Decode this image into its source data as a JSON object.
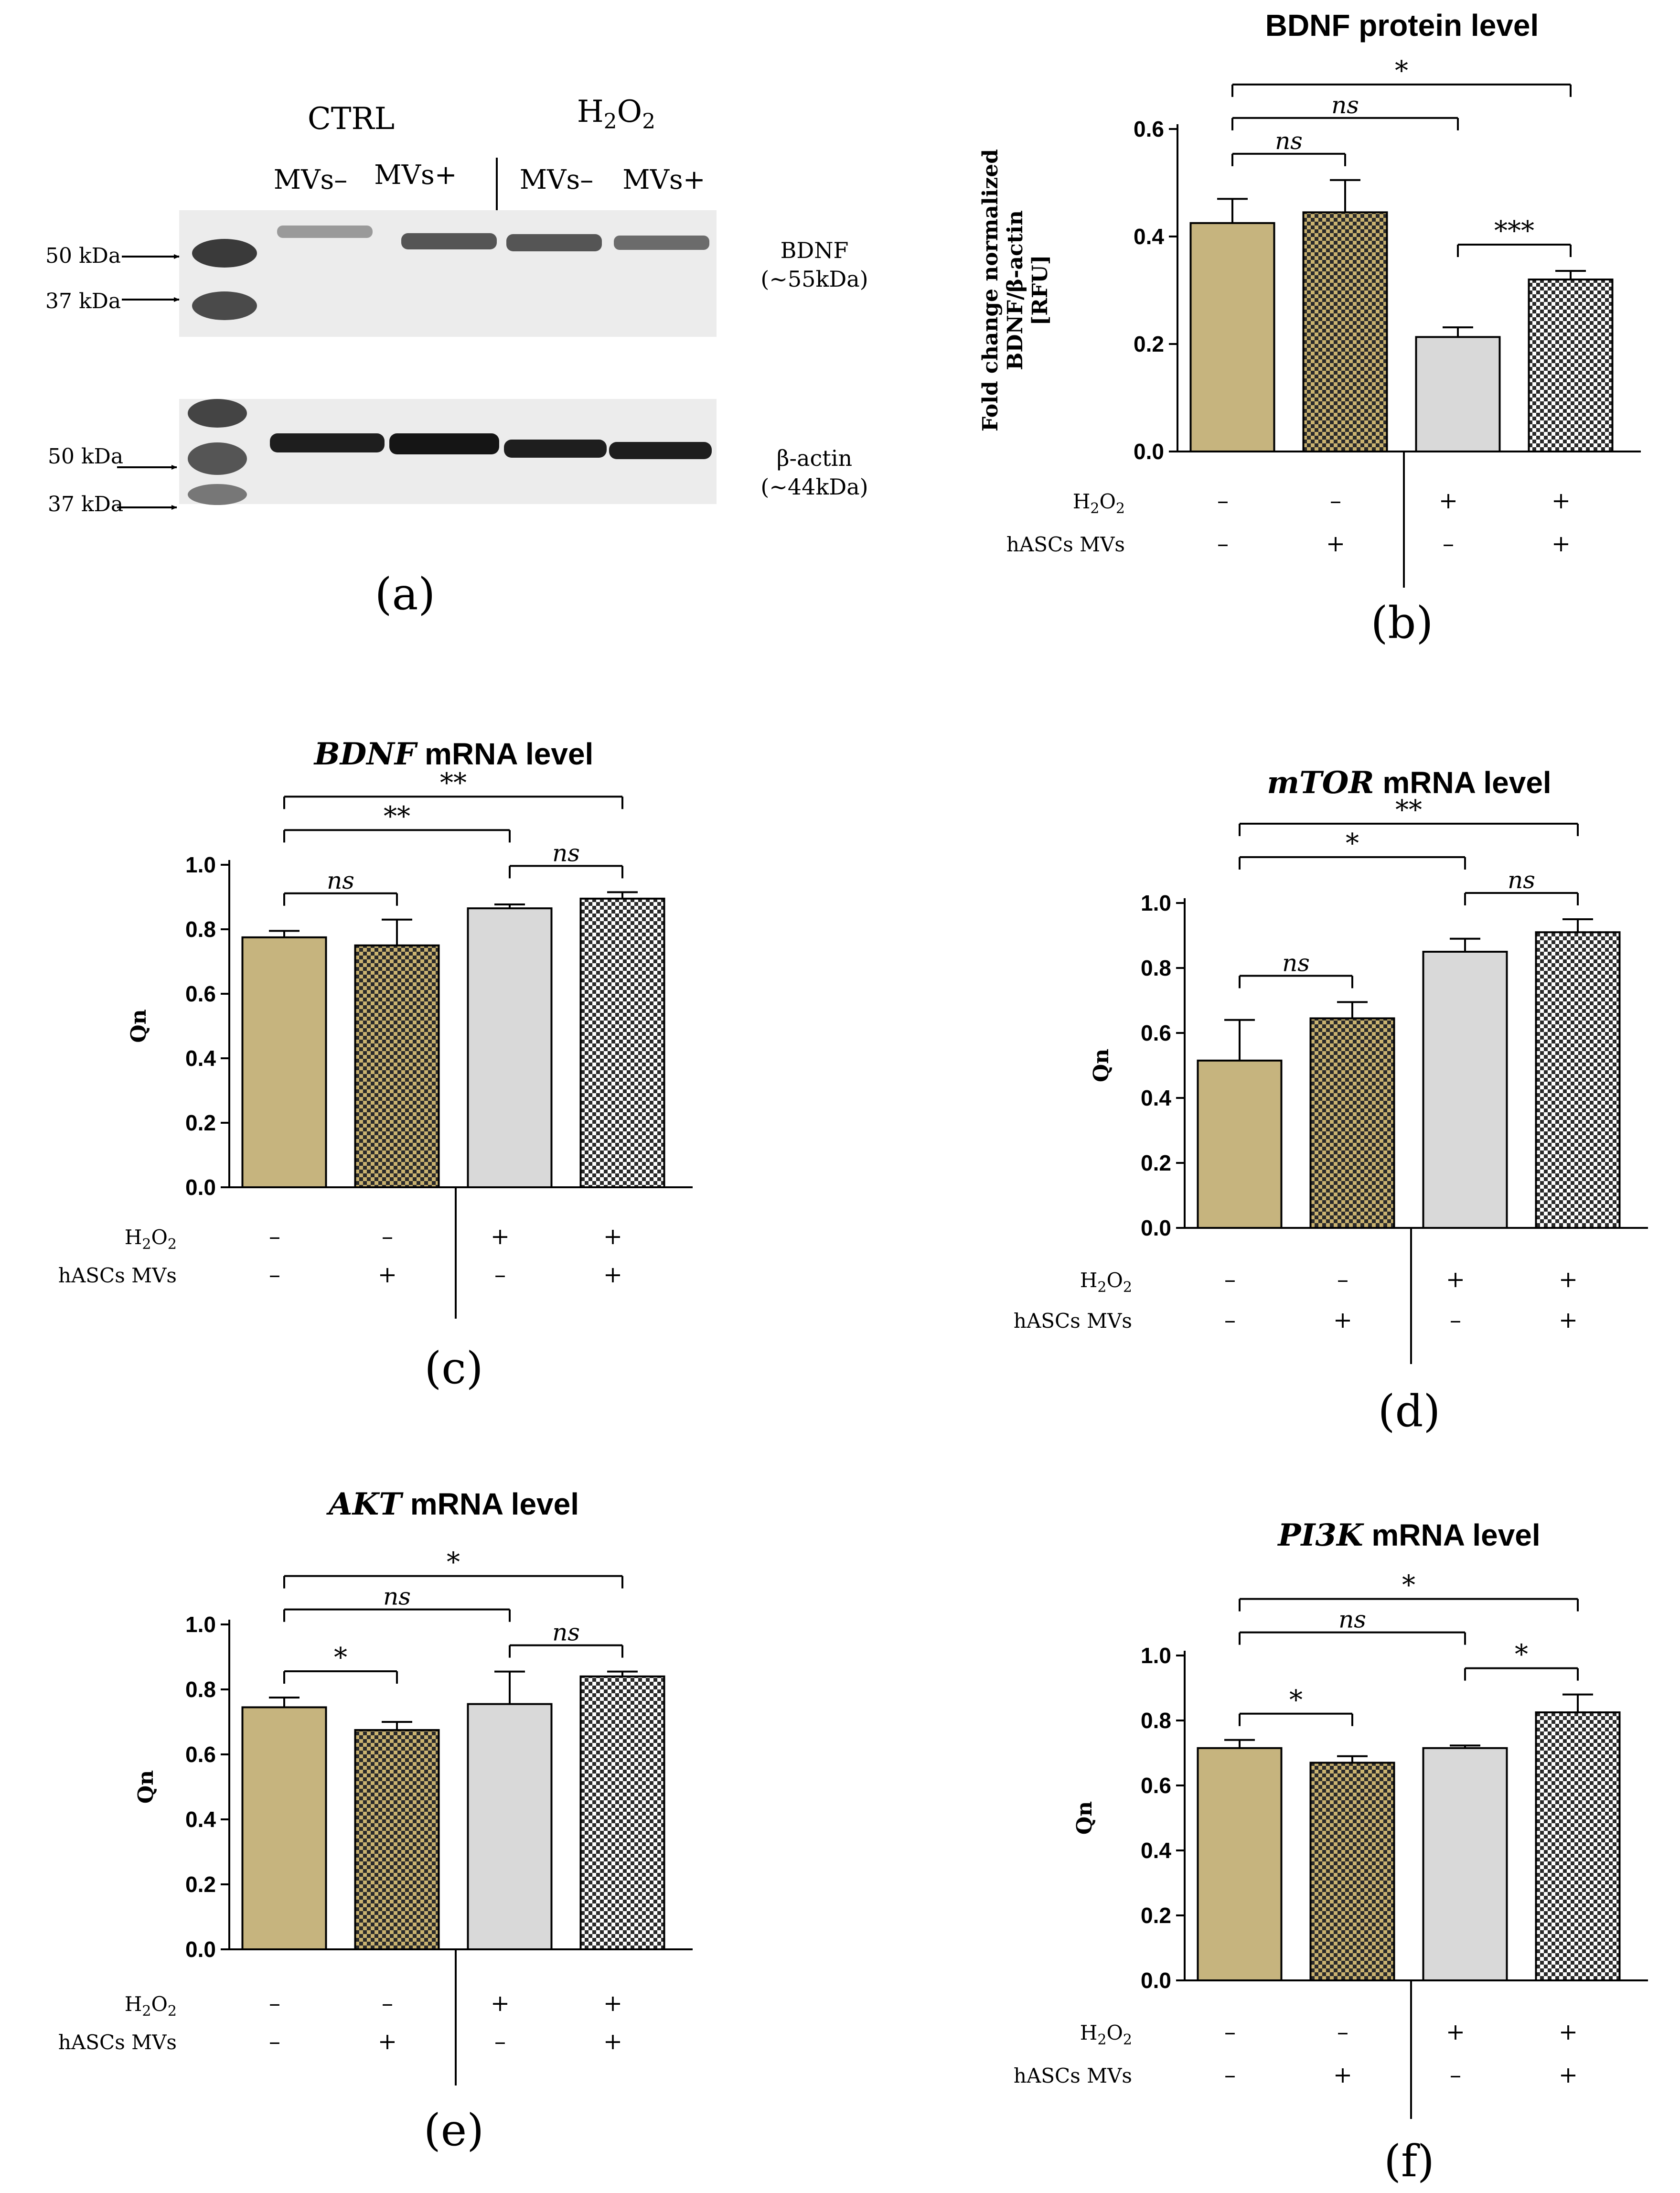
{
  "colors": {
    "ctrl_fill": "#c6b47e",
    "ctrl_mvs_fill": "#c9b270",
    "h2o2_fill": "#d9d9d9",
    "h2o2_mvs_fill": "#ffffff",
    "checker_dark": "#2a2a2a",
    "ink": "#000000",
    "blot_bg": "#ebebeb",
    "band": "#1e1e1e"
  },
  "blot": {
    "panel_label": "(a)",
    "group_ctrl": "CTRL",
    "group_h2o2": "H2O2",
    "lanes": [
      "MVs–",
      "MVs+",
      "MVs–",
      "MVs+"
    ],
    "bdnf_markers": [
      "50 kDa",
      "37 kDa"
    ],
    "actin_markers": [
      "50 kDa",
      "37 kDa"
    ],
    "bdnf_label": "BDNF",
    "bdnf_size": "(~55kDa)",
    "actin_label": "β-actin",
    "actin_size": "(~44kDa)"
  },
  "condition_labels": {
    "h2o2": "H2O2",
    "mvs": "hASCs MVs",
    "h2o2_signs": [
      "–",
      "–",
      "+",
      "+"
    ],
    "mvs_signs": [
      "–",
      "+",
      "–",
      "+"
    ]
  },
  "chart_data": [
    {
      "id": "b",
      "type": "bar",
      "panel_label": "(b)",
      "title": "BDNF protein level",
      "title_italic": "",
      "ylabel_lines": [
        "Fold change normalized",
        "BDNF/β-actin",
        "[RFU]"
      ],
      "ylim": [
        0,
        0.6
      ],
      "yticks": [
        0.0,
        0.2,
        0.4,
        0.6
      ],
      "tick_labels": [
        "0.0",
        "0.2",
        "0.4",
        "0.6"
      ],
      "categories": [
        "CTRL MVs–",
        "CTRL MVs+",
        "H2O2 MVs–",
        "H2O2 MVs+"
      ],
      "values": [
        0.425,
        0.445,
        0.213,
        0.32
      ],
      "errors": [
        0.045,
        0.06,
        0.018,
        0.016
      ],
      "significance": [
        {
          "from": 0,
          "to": 3,
          "label": "*"
        },
        {
          "from": 0,
          "to": 2,
          "label": "ns"
        },
        {
          "from": 0,
          "to": 1,
          "label": "ns"
        },
        {
          "from": 2,
          "to": 3,
          "label": "***"
        }
      ]
    },
    {
      "id": "c",
      "type": "bar",
      "panel_label": "(c)",
      "title": " mRNA level",
      "title_italic": "BDNF",
      "ylabel_lines": [
        "Qn"
      ],
      "ylim": [
        0,
        1.0
      ],
      "yticks": [
        0.0,
        0.2,
        0.4,
        0.6,
        0.8,
        1.0
      ],
      "tick_labels": [
        "0.0",
        "0.2",
        "0.4",
        "0.6",
        "0.8",
        "1.0"
      ],
      "categories": [
        "CTRL MVs–",
        "CTRL MVs+",
        "H2O2 MVs–",
        "H2O2 MVs+"
      ],
      "values": [
        0.775,
        0.75,
        0.865,
        0.895
      ],
      "errors": [
        0.02,
        0.08,
        0.012,
        0.02
      ],
      "significance": [
        {
          "from": 0,
          "to": 3,
          "label": "**"
        },
        {
          "from": 0,
          "to": 2,
          "label": "**"
        },
        {
          "from": 0,
          "to": 1,
          "label": "ns"
        },
        {
          "from": 2,
          "to": 3,
          "label": "ns"
        }
      ]
    },
    {
      "id": "d",
      "type": "bar",
      "panel_label": "(d)",
      "title": " mRNA level",
      "title_italic": "mTOR",
      "ylabel_lines": [
        "Qn"
      ],
      "ylim": [
        0,
        1.0
      ],
      "yticks": [
        0.0,
        0.2,
        0.4,
        0.6,
        0.8,
        1.0
      ],
      "tick_labels": [
        "0.0",
        "0.2",
        "0.4",
        "0.6",
        "0.8",
        "1.0"
      ],
      "categories": [
        "CTRL MVs–",
        "CTRL MVs+",
        "H2O2 MVs–",
        "H2O2 MVs+"
      ],
      "values": [
        0.515,
        0.645,
        0.85,
        0.91
      ],
      "errors": [
        0.125,
        0.05,
        0.04,
        0.04
      ],
      "significance": [
        {
          "from": 0,
          "to": 3,
          "label": "**"
        },
        {
          "from": 0,
          "to": 2,
          "label": "*"
        },
        {
          "from": 0,
          "to": 1,
          "label": "ns"
        },
        {
          "from": 2,
          "to": 3,
          "label": "ns"
        }
      ]
    },
    {
      "id": "e",
      "type": "bar",
      "panel_label": "(e)",
      "title": " mRNA level",
      "title_italic": "AKT",
      "ylabel_lines": [
        "Qn"
      ],
      "ylim": [
        0,
        1.0
      ],
      "yticks": [
        0.0,
        0.2,
        0.4,
        0.6,
        0.8,
        1.0
      ],
      "tick_labels": [
        "0.0",
        "0.2",
        "0.4",
        "0.6",
        "0.8",
        "1.0"
      ],
      "categories": [
        "CTRL MVs–",
        "CTRL MVs+",
        "H2O2 MVs–",
        "H2O2 MVs+"
      ],
      "values": [
        0.745,
        0.675,
        0.755,
        0.84
      ],
      "errors": [
        0.03,
        0.025,
        0.1,
        0.015
      ],
      "significance": [
        {
          "from": 0,
          "to": 3,
          "label": "*"
        },
        {
          "from": 0,
          "to": 2,
          "label": "ns"
        },
        {
          "from": 0,
          "to": 1,
          "label": "*"
        },
        {
          "from": 2,
          "to": 3,
          "label": "ns"
        }
      ]
    },
    {
      "id": "f",
      "type": "bar",
      "panel_label": "(f)",
      "title": " mRNA level",
      "title_italic": "PI3K",
      "ylabel_lines": [
        "Qn"
      ],
      "ylim": [
        0,
        1.0
      ],
      "yticks": [
        0.0,
        0.2,
        0.4,
        0.6,
        0.8,
        1.0
      ],
      "tick_labels": [
        "0.0",
        "0.2",
        "0.4",
        "0.6",
        "0.8",
        "1.0"
      ],
      "categories": [
        "CTRL MVs–",
        "CTRL MVs+",
        "H2O2 MVs–",
        "H2O2 MVs+"
      ],
      "values": [
        0.715,
        0.67,
        0.715,
        0.825
      ],
      "errors": [
        0.025,
        0.02,
        0.008,
        0.055
      ],
      "significance": [
        {
          "from": 0,
          "to": 3,
          "label": "*"
        },
        {
          "from": 0,
          "to": 2,
          "label": "ns"
        },
        {
          "from": 0,
          "to": 1,
          "label": "*"
        },
        {
          "from": 2,
          "to": 3,
          "label": "*"
        }
      ]
    }
  ]
}
